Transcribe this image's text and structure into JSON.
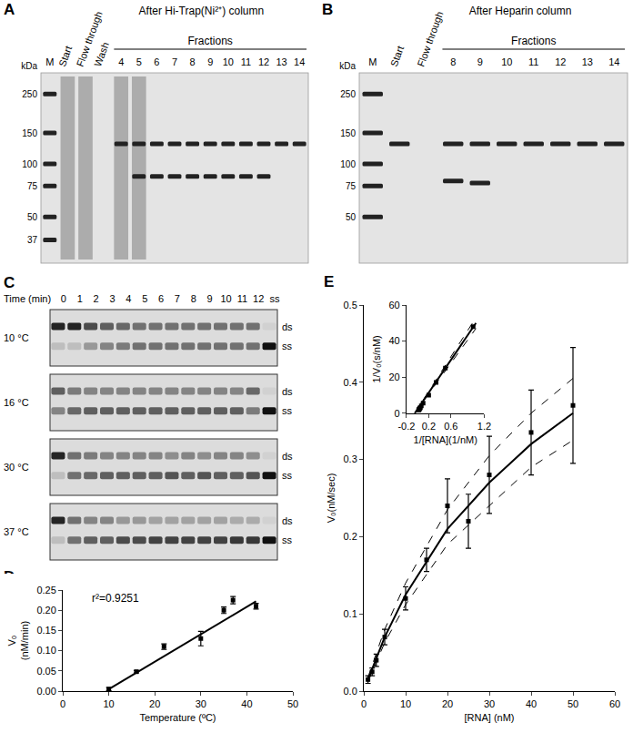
{
  "figure": {
    "A": {
      "panel": "A",
      "title": "After Hi-Trap(Ni²⁺) column",
      "group_label": "Fractions",
      "unit": "kDa",
      "marker_kDa": [
        250,
        150,
        100,
        75,
        50,
        37
      ],
      "lanes": [
        {
          "label": "M",
          "marker": true,
          "bands": []
        },
        {
          "label": "Start",
          "smear": true,
          "bands": []
        },
        {
          "label": "Flow through",
          "smear": true,
          "bands": []
        },
        {
          "label": "Wash",
          "bands": []
        },
        {
          "label": "4",
          "smear": true,
          "bands": [
            130
          ]
        },
        {
          "label": "5",
          "smear": true,
          "bands": [
            130,
            85
          ]
        },
        {
          "label": "6",
          "bands": [
            130,
            85
          ]
        },
        {
          "label": "7",
          "bands": [
            130,
            85
          ]
        },
        {
          "label": "8",
          "bands": [
            130,
            85
          ]
        },
        {
          "label": "9",
          "bands": [
            130,
            85
          ]
        },
        {
          "label": "10",
          "bands": [
            130,
            85
          ]
        },
        {
          "label": "11",
          "bands": [
            130,
            85
          ]
        },
        {
          "label": "12",
          "bands": [
            130,
            85
          ]
        },
        {
          "label": "13",
          "bands": [
            130
          ]
        },
        {
          "label": "14",
          "bands": [
            130
          ]
        }
      ]
    },
    "B": {
      "panel": "B",
      "title": "After Heparin column",
      "group_label": "Fractions",
      "unit": "kDa",
      "marker_kDa": [
        250,
        150,
        100,
        75,
        50
      ],
      "lanes": [
        {
          "label": "M",
          "marker": true,
          "bands": []
        },
        {
          "label": "Start",
          "bands": [
            130
          ]
        },
        {
          "label": "Flow through",
          "bands": []
        },
        {
          "label": "8",
          "bands": [
            130,
            80
          ]
        },
        {
          "label": "9",
          "bands": [
            130,
            78
          ]
        },
        {
          "label": "10",
          "bands": [
            130
          ]
        },
        {
          "label": "11",
          "bands": [
            130
          ]
        },
        {
          "label": "12",
          "bands": [
            130
          ]
        },
        {
          "label": "13",
          "bands": [
            130
          ]
        },
        {
          "label": "14",
          "bands": [
            130
          ]
        }
      ]
    },
    "C": {
      "panel": "C",
      "lane_title": "Time (min)",
      "lanes": [
        "0",
        "1",
        "2",
        "3",
        "4",
        "5",
        "6",
        "7",
        "8",
        "9",
        "10",
        "11",
        "12",
        "ss"
      ],
      "band_labels": [
        "ds",
        "ss"
      ],
      "rows": [
        {
          "label": "10 °C",
          "ss_fraction": [
            0.1,
            0.1,
            0.3,
            0.4,
            0.45,
            0.5,
            0.5,
            0.5,
            0.5,
            0.5,
            0.5,
            0.5,
            0.5,
            1
          ]
        },
        {
          "label": "16 °C",
          "ss_fraction": [
            0.4,
            0.55,
            0.6,
            0.6,
            0.6,
            0.6,
            0.6,
            0.6,
            0.6,
            0.6,
            0.6,
            0.6,
            0.45,
            1
          ]
        },
        {
          "label": "30 °C",
          "ss_fraction": [
            0.1,
            0.5,
            0.55,
            0.6,
            0.6,
            0.6,
            0.6,
            0.65,
            0.6,
            0.65,
            0.6,
            0.6,
            0.65,
            1
          ]
        },
        {
          "label": "37 °C",
          "ss_fraction": [
            0.1,
            0.5,
            0.6,
            0.6,
            0.7,
            0.7,
            0.75,
            0.75,
            0.75,
            0.75,
            0.75,
            0.8,
            0.8,
            1
          ]
        }
      ]
    }
  },
  "chart_data": [
    {
      "panel": "D",
      "type": "scatter",
      "xlabel": "Temperature (ºC)",
      "ylabel": "V₀ (nM/min)",
      "x": [
        10,
        16,
        22,
        30,
        35,
        37,
        42
      ],
      "values": [
        0.005,
        0.048,
        0.11,
        0.13,
        0.2,
        0.225,
        0.21
      ],
      "errors": [
        0.004,
        0.003,
        0.007,
        0.018,
        0.008,
        0.009,
        0.007
      ],
      "marker": "square",
      "color": "#000000",
      "fit": {
        "x": [
          10,
          42
        ],
        "values": [
          0.005,
          0.222
        ],
        "line_style": "solid"
      },
      "annotations": [
        "r²=0.9251"
      ],
      "xlim": [
        0,
        50
      ],
      "xticks": [
        0,
        10,
        20,
        30,
        40,
        50
      ],
      "ylim": [
        0,
        0.25
      ],
      "yticks": [
        {
          "value": 0,
          "label": "0.00"
        },
        {
          "value": 0.05,
          "label": "0.05"
        },
        {
          "value": 0.1,
          "label": "0.10"
        },
        {
          "value": 0.15,
          "label": "0.15"
        },
        {
          "value": 0.2,
          "label": "0.20"
        },
        {
          "value": 0.25,
          "label": "0.25"
        }
      ],
      "grid": false
    },
    {
      "panel": "E",
      "type": "scatter",
      "xlabel": "[RNA] (nM)",
      "ylabel": "V₀(nM/sec)",
      "x": [
        1,
        2,
        3,
        5,
        10,
        15,
        20,
        25,
        30,
        40,
        50
      ],
      "values": [
        0.015,
        0.025,
        0.04,
        0.07,
        0.12,
        0.17,
        0.24,
        0.22,
        0.28,
        0.335,
        0.37
      ],
      "errors": [
        0.005,
        0.005,
        0.008,
        0.01,
        0.015,
        0.015,
        0.035,
        0.035,
        0.05,
        0.055,
        0.075
      ],
      "marker": "square",
      "color": "#000000",
      "fit": {
        "x": [
          1,
          5,
          10,
          20,
          30,
          40,
          50
        ],
        "values": [
          0.015,
          0.07,
          0.125,
          0.21,
          0.27,
          0.32,
          0.36
        ],
        "line_style": "solid"
      },
      "confidence": {
        "x": [
          1,
          5,
          10,
          20,
          30,
          40,
          50
        ],
        "upper": [
          0.018,
          0.08,
          0.14,
          0.235,
          0.305,
          0.36,
          0.405
        ],
        "lower": [
          0.012,
          0.063,
          0.112,
          0.19,
          0.24,
          0.29,
          0.325
        ],
        "line_style": "dashed"
      },
      "xlim": [
        0,
        60
      ],
      "xticks": [
        0,
        10,
        20,
        30,
        40,
        50,
        60
      ],
      "ylim": [
        0,
        0.5
      ],
      "yticks": [
        {
          "value": 0,
          "label": "0.0"
        },
        0.1,
        0.2,
        0.3,
        0.4,
        0.5
      ],
      "grid": false,
      "inset": {
        "type": "scatter",
        "xlabel": "1/[RNA](1/nM)",
        "ylabel": "1/V₀(s/nM)",
        "x": [
          1,
          0.5,
          0.333,
          0.2,
          0.1,
          0.067,
          0.05,
          0.04,
          0.033,
          0.025,
          0.02
        ],
        "values": [
          48,
          25,
          17,
          10,
          5.5,
          4,
          3,
          2.8,
          2.3,
          2,
          1.8
        ],
        "marker": "square",
        "color": "#000000",
        "fit": {
          "x": [
            -0.05,
            1.05
          ],
          "values": [
            0,
            50
          ],
          "line_style": "solid"
        },
        "confidence": {
          "x": [
            -0.05,
            1.05
          ],
          "upper": [
            0,
            53
          ],
          "lower": [
            0,
            47
          ],
          "line_style": "dashed"
        },
        "xlim": [
          -0.2,
          1.2
        ],
        "xticks": [
          -0.2,
          0.2,
          0.6,
          1.2
        ],
        "ylim": [
          0,
          60
        ],
        "yticks": [
          0,
          20,
          40,
          60
        ]
      }
    }
  ]
}
